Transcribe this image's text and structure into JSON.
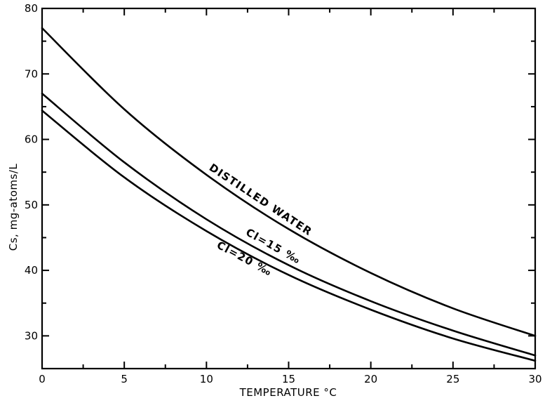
{
  "chart_data": {
    "type": "line",
    "title": "",
    "xlabel": "TEMPERATURE °C",
    "ylabel": "Cs, mg-atoms/L",
    "xlim": [
      0,
      30
    ],
    "ylim": [
      25,
      80
    ],
    "xticks": [
      0,
      5,
      10,
      15,
      20,
      25,
      30
    ],
    "xtick_labels": [
      "0",
      "5",
      "10",
      "15",
      "20",
      "25",
      "30"
    ],
    "yticks": [
      30,
      40,
      50,
      60,
      70,
      80
    ],
    "ytick_labels": [
      "30",
      "40",
      "50",
      "60",
      "70",
      "80"
    ],
    "grid": false,
    "legend": "none",
    "series": [
      {
        "name": "DISTILLED WATER",
        "x": [
          0,
          5,
          10,
          15,
          20,
          25,
          30
        ],
        "y": [
          77.0,
          64.6,
          54.6,
          46.3,
          39.6,
          34.2,
          30.0
        ]
      },
      {
        "name": "Cl=15 ‰",
        "x": [
          0,
          5,
          10,
          15,
          20,
          25,
          30
        ],
        "y": [
          67.0,
          56.5,
          47.8,
          40.8,
          35.3,
          30.8,
          27.0
        ]
      },
      {
        "name": "Cl=20 ‰",
        "x": [
          0,
          5,
          10,
          15,
          20,
          25,
          30
        ],
        "y": [
          64.4,
          54.2,
          46.0,
          39.3,
          34.0,
          29.6,
          26.2
        ]
      }
    ]
  }
}
